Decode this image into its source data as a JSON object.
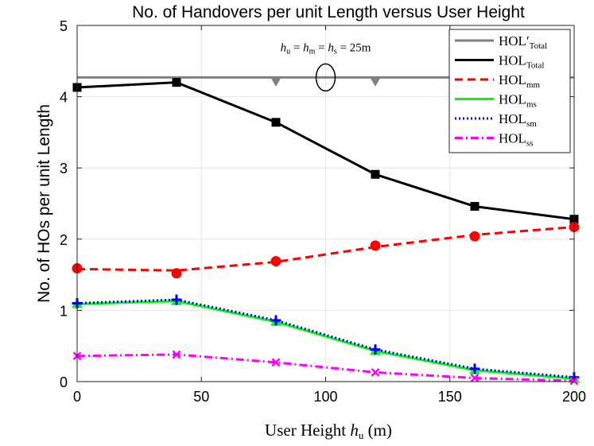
{
  "chart_data": {
    "type": "line",
    "title": "No. of Handovers per unit Length versus User Height",
    "xlabel": "User Height",
    "xlabel_symbol": "h",
    "xlabel_symbol_sub": "u",
    "xlabel_unit": "(m)",
    "ylabel": "No. of HOs per unit Length",
    "xlim": [
      0,
      200
    ],
    "ylim": [
      0,
      5
    ],
    "xticks": [
      0,
      50,
      100,
      150,
      200
    ],
    "yticks": [
      0,
      1,
      2,
      3,
      4,
      5
    ],
    "grid": true,
    "legend_position": "top-right",
    "annotation": {
      "text": "h_u = h_m = h_s = 25m",
      "parts": {
        "h": "h",
        "u": "u",
        "m": "m",
        "s": "s",
        "value": "= 25m"
      },
      "x": 100,
      "y": 4.38,
      "ellipse_center": [
        100,
        4.27
      ]
    },
    "x": [
      0,
      40,
      80,
      120,
      160,
      200
    ],
    "series": [
      {
        "id": "hol_total_prime",
        "name": "HOL",
        "prime": "′",
        "sub": "Total",
        "color": "#808080",
        "dash": "solid",
        "marker": "triangle-down",
        "line_values": [
          4.27,
          4.27,
          4.27,
          4.27,
          4.27,
          4.27
        ],
        "marker_x": [
          80,
          120,
          160
        ],
        "marker_values": [
          4.22,
          4.22,
          4.22
        ]
      },
      {
        "id": "hol_total",
        "name": "HOL",
        "sub": "Total",
        "color": "#000000",
        "dash": "solid",
        "marker": "square",
        "values": [
          4.13,
          4.2,
          3.64,
          2.91,
          2.46,
          2.28
        ]
      },
      {
        "id": "hol_mm",
        "name": "HOL",
        "sub": "mm",
        "color": "#ff0000",
        "dash": "dashed",
        "marker": "circle",
        "line_values": [
          1.58,
          1.56,
          1.68,
          1.89,
          2.06,
          2.17
        ],
        "values": [
          1.59,
          1.52,
          1.69,
          1.91,
          2.04,
          2.17
        ]
      },
      {
        "id": "hol_ms",
        "name": "HOL",
        "sub": "ms",
        "color": "#00ff00",
        "dash": "solid",
        "marker": "triangle-up",
        "values": [
          1.09,
          1.13,
          0.84,
          0.43,
          0.16,
          0.04
        ]
      },
      {
        "id": "hol_sm",
        "name": "HOL",
        "sub": "sm",
        "color": "#0000ff",
        "dash": "dotted",
        "marker": "plus",
        "values": [
          1.1,
          1.15,
          0.86,
          0.45,
          0.18,
          0.06
        ]
      },
      {
        "id": "hol_ss",
        "name": "HOL",
        "sub": "ss",
        "color": "#ff00ff",
        "dash": "dashdot",
        "marker": "x",
        "values": [
          0.36,
          0.38,
          0.27,
          0.13,
          0.05,
          0.01
        ]
      }
    ]
  }
}
